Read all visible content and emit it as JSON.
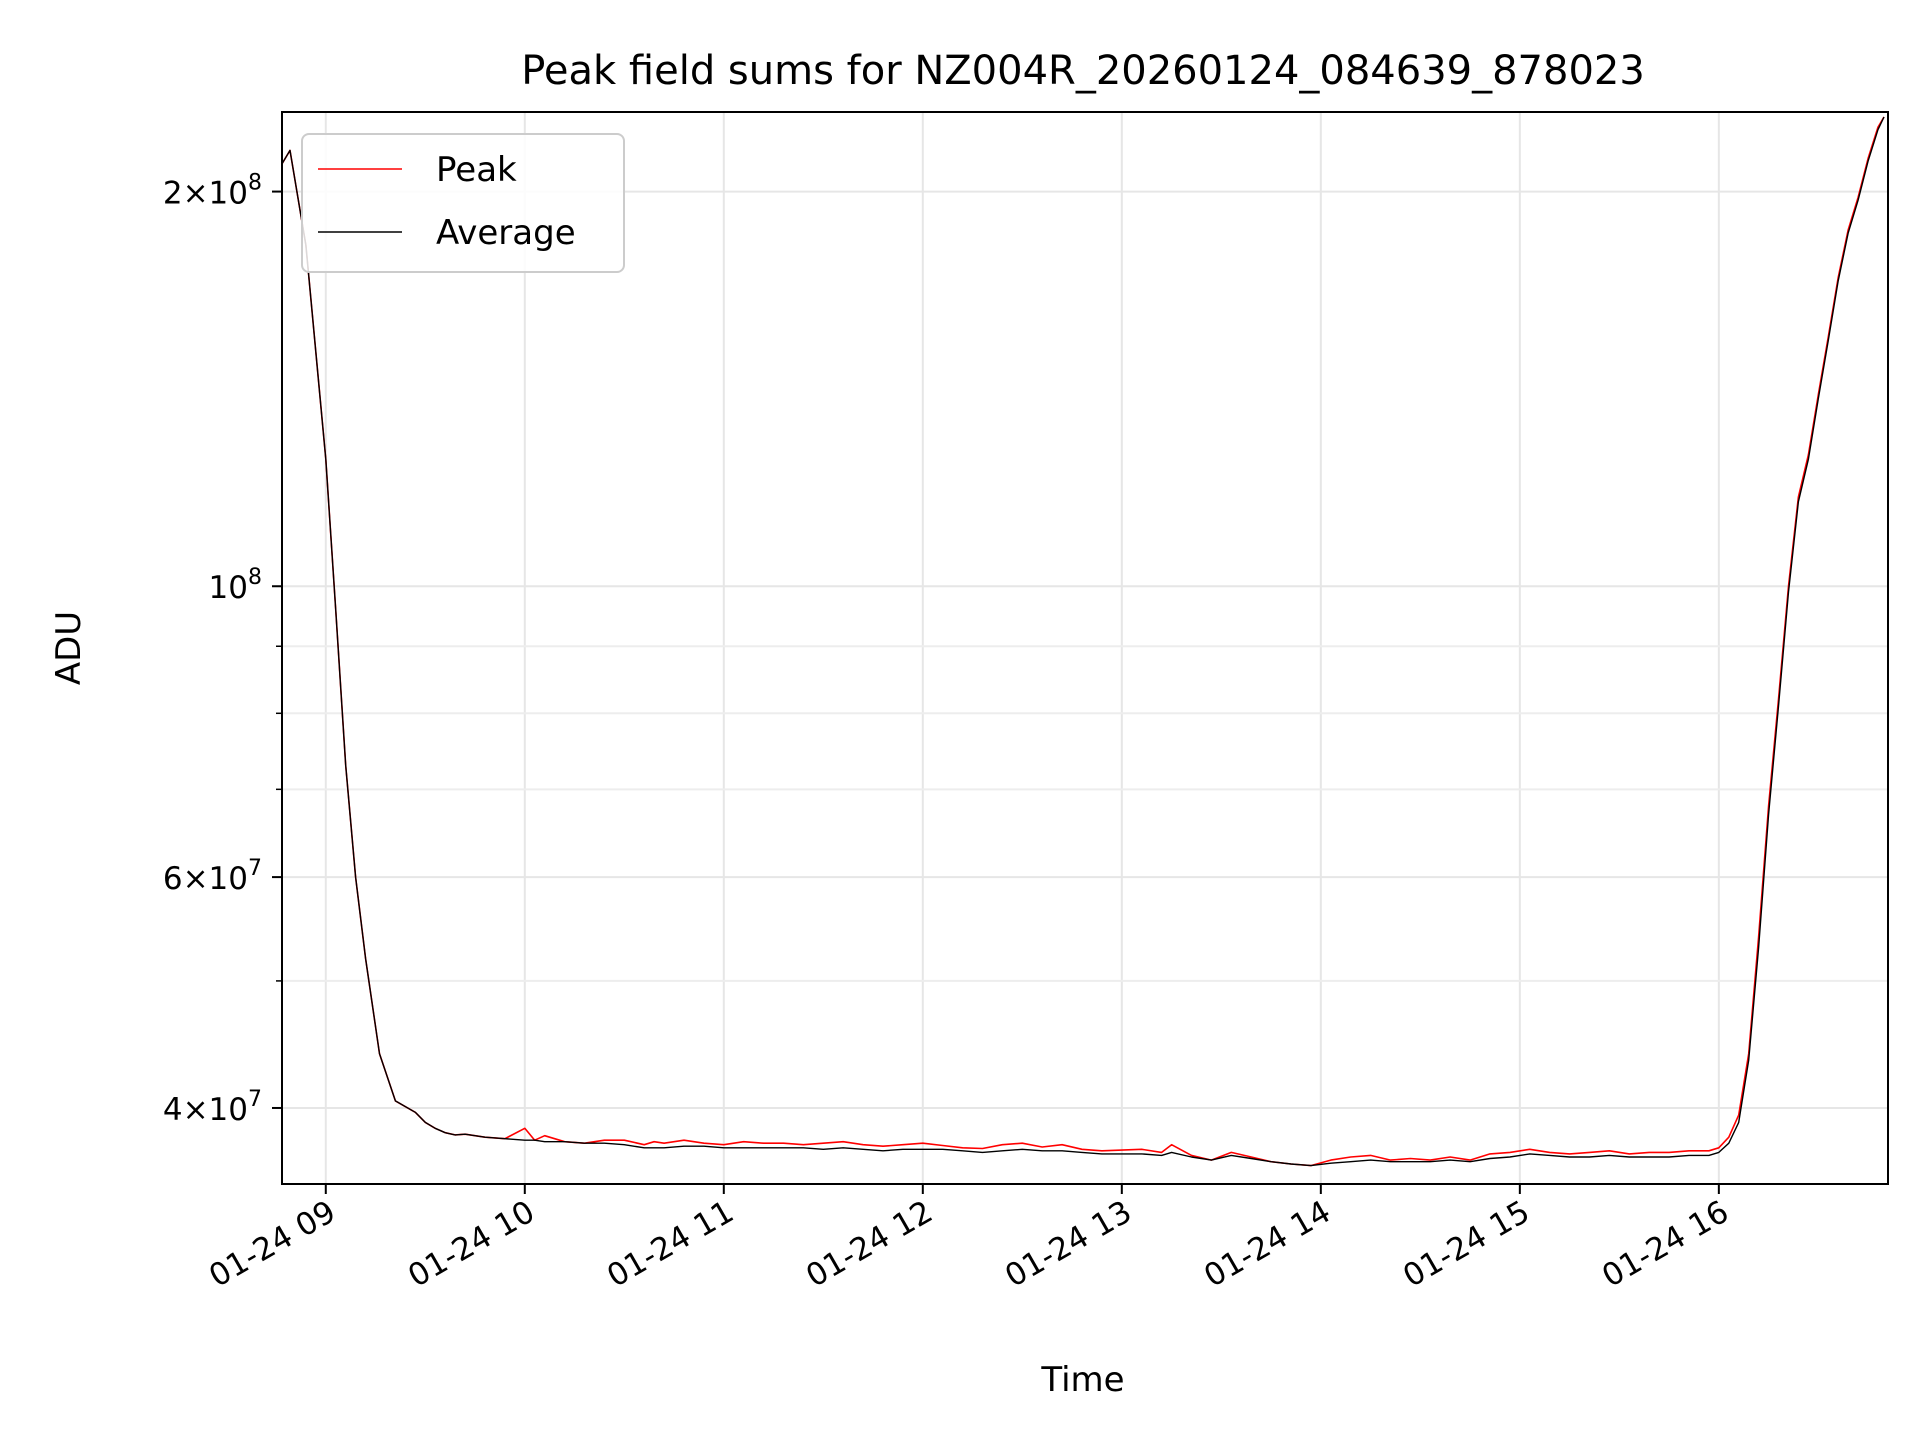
{
  "chart_data": {
    "type": "line",
    "title": "Peak field sums for NZ004R_20260124_084639_878023",
    "xlabel": "Time",
    "ylabel": "ADU",
    "x_unit": "hour of 2026-01-24",
    "xlim": [
      8.78,
      16.85
    ],
    "ylim": [
      35000000,
      230000000
    ],
    "yscale": "log",
    "grid": true,
    "legend_position": "top-left",
    "x_ticks": [
      {
        "value": 9,
        "label": "01-24 09"
      },
      {
        "value": 10,
        "label": "01-24 10"
      },
      {
        "value": 11,
        "label": "01-24 11"
      },
      {
        "value": 12,
        "label": "01-24 12"
      },
      {
        "value": 13,
        "label": "01-24 13"
      },
      {
        "value": 14,
        "label": "01-24 14"
      },
      {
        "value": 15,
        "label": "01-24 15"
      },
      {
        "value": 16,
        "label": "01-24 16"
      }
    ],
    "y_major_ticks": [
      {
        "value": 40000000,
        "mant": "4",
        "exp": "7"
      },
      {
        "value": 60000000,
        "mant": "6",
        "exp": "7"
      },
      {
        "value": 100000000,
        "mant": "",
        "exp": "8"
      },
      {
        "value": 200000000,
        "mant": "2",
        "exp": "8"
      }
    ],
    "y_minor_ticks": [
      50000000,
      70000000,
      80000000,
      90000000
    ],
    "series": [
      {
        "name": "Peak",
        "color": "#ff0000",
        "x": [
          8.78,
          8.82,
          8.9,
          9.0,
          9.05,
          9.1,
          9.15,
          9.2,
          9.27,
          9.35,
          9.45,
          9.5,
          9.55,
          9.6,
          9.65,
          9.7,
          9.8,
          9.9,
          10.0,
          10.05,
          10.1,
          10.2,
          10.3,
          10.4,
          10.5,
          10.6,
          10.65,
          10.7,
          10.8,
          10.9,
          11.0,
          11.1,
          11.2,
          11.3,
          11.4,
          11.5,
          11.6,
          11.7,
          11.8,
          11.9,
          12.0,
          12.1,
          12.2,
          12.3,
          12.4,
          12.5,
          12.6,
          12.7,
          12.8,
          12.9,
          13.0,
          13.1,
          13.2,
          13.25,
          13.35,
          13.45,
          13.55,
          13.65,
          13.75,
          13.85,
          13.95,
          14.05,
          14.15,
          14.25,
          14.35,
          14.45,
          14.55,
          14.65,
          14.75,
          14.85,
          14.95,
          15.05,
          15.15,
          15.25,
          15.35,
          15.45,
          15.55,
          15.65,
          15.75,
          15.85,
          15.95,
          16.0,
          16.05,
          16.1,
          16.15,
          16.2,
          16.25,
          16.3,
          16.35,
          16.4,
          16.45,
          16.5,
          16.55,
          16.6,
          16.65,
          16.7,
          16.75,
          16.8,
          16.83
        ],
        "values": [
          210000000,
          215000000,
          182000000,
          125000000,
          96000000,
          73000000,
          60000000,
          52000000,
          44000000,
          40500000,
          39700000,
          39000000,
          38600000,
          38300000,
          38150000,
          38200000,
          38000000,
          37900000,
          38600000,
          37800000,
          38100000,
          37700000,
          37600000,
          37800000,
          37800000,
          37500000,
          37700000,
          37600000,
          37800000,
          37600000,
          37500000,
          37700000,
          37600000,
          37600000,
          37500000,
          37600000,
          37700000,
          37500000,
          37400000,
          37500000,
          37600000,
          37450000,
          37300000,
          37250000,
          37500000,
          37600000,
          37350000,
          37500000,
          37200000,
          37100000,
          37150000,
          37200000,
          37000000,
          37500000,
          36800000,
          36500000,
          37000000,
          36700000,
          36400000,
          36250000,
          36150000,
          36500000,
          36700000,
          36800000,
          36500000,
          36600000,
          36500000,
          36700000,
          36500000,
          36900000,
          37000000,
          37200000,
          37000000,
          36900000,
          37000000,
          37100000,
          36900000,
          37000000,
          37000000,
          37100000,
          37100000,
          37300000,
          38000000,
          39500000,
          44000000,
          54000000,
          68000000,
          82000000,
          100000000,
          117000000,
          126000000,
          140000000,
          155000000,
          172000000,
          187000000,
          198000000,
          212000000,
          224000000,
          228000000
        ]
      },
      {
        "name": "Average",
        "color": "#000000",
        "x": [
          8.78,
          8.82,
          8.9,
          9.0,
          9.05,
          9.1,
          9.15,
          9.2,
          9.27,
          9.35,
          9.45,
          9.5,
          9.55,
          9.6,
          9.65,
          9.7,
          9.8,
          9.9,
          10.0,
          10.05,
          10.1,
          10.2,
          10.3,
          10.4,
          10.5,
          10.6,
          10.65,
          10.7,
          10.8,
          10.9,
          11.0,
          11.1,
          11.2,
          11.3,
          11.4,
          11.5,
          11.6,
          11.7,
          11.8,
          11.9,
          12.0,
          12.1,
          12.2,
          12.3,
          12.4,
          12.5,
          12.6,
          12.7,
          12.8,
          12.9,
          13.0,
          13.1,
          13.2,
          13.25,
          13.35,
          13.45,
          13.55,
          13.65,
          13.75,
          13.85,
          13.95,
          14.05,
          14.15,
          14.25,
          14.35,
          14.45,
          14.55,
          14.65,
          14.75,
          14.85,
          14.95,
          15.05,
          15.15,
          15.25,
          15.35,
          15.45,
          15.55,
          15.65,
          15.75,
          15.85,
          15.95,
          16.0,
          16.05,
          16.1,
          16.15,
          16.2,
          16.25,
          16.3,
          16.35,
          16.4,
          16.45,
          16.5,
          16.55,
          16.6,
          16.65,
          16.7,
          16.75,
          16.8,
          16.83
        ],
        "values": [
          210000000,
          215000000,
          182000000,
          125000000,
          96000000,
          73000000,
          60000000,
          52000000,
          44000000,
          40500000,
          39700000,
          39000000,
          38600000,
          38300000,
          38150000,
          38200000,
          38000000,
          37900000,
          37800000,
          37800000,
          37700000,
          37700000,
          37600000,
          37600000,
          37500000,
          37300000,
          37300000,
          37300000,
          37400000,
          37400000,
          37300000,
          37300000,
          37300000,
          37300000,
          37300000,
          37200000,
          37300000,
          37200000,
          37100000,
          37200000,
          37200000,
          37200000,
          37100000,
          37000000,
          37100000,
          37200000,
          37100000,
          37100000,
          37000000,
          36900000,
          36900000,
          36900000,
          36800000,
          37000000,
          36700000,
          36500000,
          36800000,
          36600000,
          36400000,
          36250000,
          36150000,
          36300000,
          36400000,
          36500000,
          36400000,
          36400000,
          36400000,
          36500000,
          36400000,
          36600000,
          36700000,
          36900000,
          36800000,
          36700000,
          36700000,
          36800000,
          36700000,
          36700000,
          36700000,
          36800000,
          36800000,
          37000000,
          37600000,
          39000000,
          43500000,
          53000000,
          67000000,
          81000000,
          99000000,
          116000000,
          125000000,
          139000000,
          154000000,
          171000000,
          186000000,
          197000000,
          211000000,
          223000000,
          228000000
        ]
      }
    ]
  }
}
